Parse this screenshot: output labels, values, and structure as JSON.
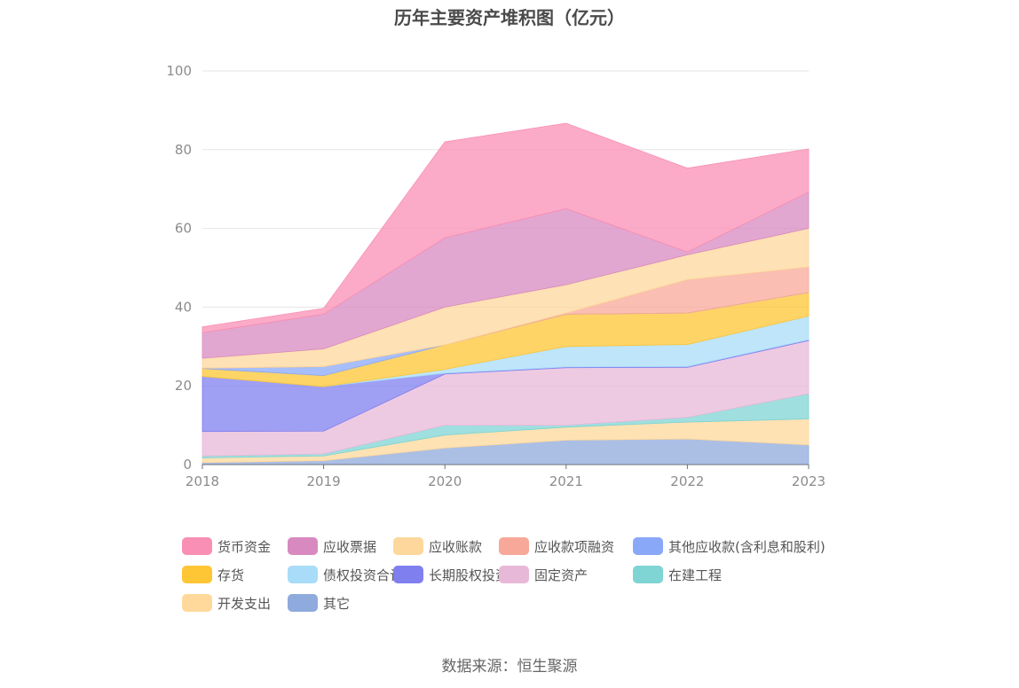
{
  "chart_data": {
    "type": "area",
    "stacked": true,
    "title": "历年主要资产堆积图（亿元）",
    "categories": [
      "2018",
      "2019",
      "2020",
      "2021",
      "2022",
      "2023"
    ],
    "ylim": [
      0,
      100
    ],
    "yticks": [
      "0",
      "20",
      "40",
      "60",
      "80",
      "100"
    ],
    "grid": true,
    "legend_position": "bottom",
    "series": [
      {
        "name": "其它",
        "color": "#8faadc",
        "values": [
          0.5,
          1.0,
          4.2,
          6.2,
          6.5,
          5.0
        ]
      },
      {
        "name": "开发支出",
        "color": "#ffd89b",
        "values": [
          1.2,
          1.2,
          3.3,
          3.3,
          4.3,
          6.6
        ]
      },
      {
        "name": "在建工程",
        "color": "#7fd4d4",
        "values": [
          0.5,
          0.5,
          2.5,
          0.5,
          1.2,
          6.4
        ]
      },
      {
        "name": "固定资产",
        "color": "#e8b8d8",
        "values": [
          6.2,
          5.8,
          13.0,
          14.6,
          12.7,
          13.5
        ]
      },
      {
        "name": "长期股权投资",
        "color": "#7f7ff0",
        "values": [
          14.0,
          11.3,
          0.2,
          0.2,
          0.2,
          0.2
        ]
      },
      {
        "name": "债权投资合计",
        "color": "#a8dcf8",
        "values": [
          0.0,
          0.0,
          1.0,
          5.2,
          5.6,
          6.0
        ]
      },
      {
        "name": "存货",
        "color": "#fec534",
        "values": [
          2.0,
          2.8,
          6.2,
          8.2,
          8.0,
          6.0
        ]
      },
      {
        "name": "其他应收款(含利息和股利)",
        "color": "#8aa8f8",
        "values": [
          0.1,
          2.3,
          0.0,
          0.0,
          0.0,
          0.0
        ]
      },
      {
        "name": "应收款项融资",
        "color": "#f8a898",
        "values": [
          0.0,
          0.0,
          0.0,
          0.3,
          8.5,
          6.5
        ]
      },
      {
        "name": "应收账款",
        "color": "#fdd79b",
        "values": [
          2.5,
          4.5,
          9.6,
          7.2,
          6.3,
          9.8
        ]
      },
      {
        "name": "应收票据",
        "color": "#d88ac0",
        "values": [
          6.5,
          8.8,
          17.6,
          19.3,
          0.7,
          9.2
        ]
      },
      {
        "name": "货币资金",
        "color": "#f98fb4",
        "values": [
          1.5,
          1.5,
          24.4,
          21.7,
          21.3,
          11.0
        ]
      }
    ],
    "legend_order": [
      "货币资金",
      "应收票据",
      "应收账款",
      "应收款项融资",
      "其他应收款(含利息和股利)",
      "存货",
      "债权投资合计",
      "长期股权投资",
      "固定资产",
      "在建工程",
      "开发支出",
      "其它"
    ]
  },
  "source": "数据来源：恒生聚源"
}
